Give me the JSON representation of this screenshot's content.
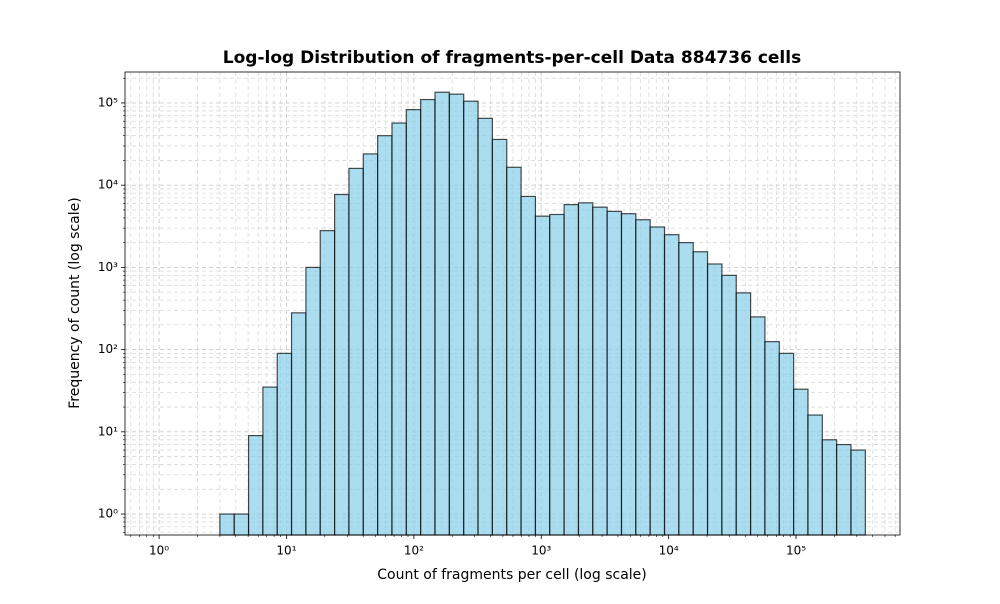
{
  "chart_data": {
    "type": "histogram",
    "title": "Log-log Distribution of fragments-per-cell Data 884736 cells",
    "x_label": "Count of fragments per cell (log scale)",
    "y_label": "Frequency of count (log scale)",
    "bins": [
      3,
      3.89,
      5.04,
      6.53,
      8.46,
      10.96,
      14.21,
      18.41,
      23.87,
      30.93,
      40.08,
      51.95,
      67.33,
      87.26,
      113.1,
      146.6,
      190.0,
      246.2,
      319.1,
      413.5,
      535.9,
      694.6,
      900.2,
      1166.6,
      1512,
      1959,
      2539,
      3291,
      4265,
      5527,
      7163,
      9284,
      12032,
      15593,
      20209,
      26191,
      33944,
      43991,
      57013,
      73889,
      95761,
      124107,
      160844,
      208455,
      270161,
      350132
    ],
    "values": [
      1,
      1,
      9,
      35,
      90,
      280,
      1000,
      2800,
      7700,
      16000,
      24000,
      40000,
      57000,
      83000,
      110000,
      135000,
      128000,
      105000,
      65000,
      36000,
      16500,
      7300,
      4200,
      4400,
      5800,
      6100,
      5400,
      4800,
      4500,
      3800,
      3100,
      2500,
      2000,
      1550,
      1100,
      800,
      490,
      250,
      125,
      90,
      33,
      16,
      8,
      7,
      6
    ],
    "color": "#87ceeb",
    "edgecolor": "#000000",
    "xscale": "log",
    "yscale": "log",
    "xlim": [
      0.54,
      655000
    ],
    "ylim": [
      0.556,
      238000
    ],
    "xticks": [
      {
        "value": 1,
        "label": "10⁰"
      },
      {
        "value": 10,
        "label": "10¹"
      },
      {
        "value": 100,
        "label": "10²"
      },
      {
        "value": 1000,
        "label": "10³"
      },
      {
        "value": 10000,
        "label": "10⁴"
      },
      {
        "value": 100000,
        "label": "10⁵"
      }
    ],
    "yticks": [
      {
        "value": 1,
        "label": "10⁰"
      },
      {
        "value": 10,
        "label": "10¹"
      },
      {
        "value": 100,
        "label": "10²"
      },
      {
        "value": 1000,
        "label": "10³"
      },
      {
        "value": 10000,
        "label": "10⁴"
      },
      {
        "value": 100000,
        "label": "10⁵"
      }
    ],
    "grid": true,
    "minor_grid": true
  }
}
